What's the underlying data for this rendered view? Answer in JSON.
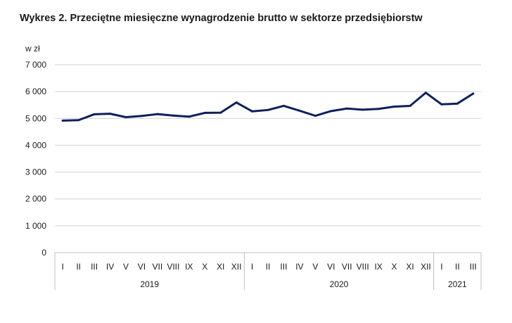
{
  "chart_data": {
    "type": "line",
    "title": "Wykres 2. Przeciętne miesięczne wynagrodzenie brutto w sektorze przedsiębiorstw",
    "unit_label": "w zł",
    "ylim": [
      0,
      7000
    ],
    "y_ticks": [
      "0",
      "1 000",
      "2 000",
      "3 000",
      "4 000",
      "5 000",
      "6 000",
      "7 000"
    ],
    "y_tick_values": [
      0,
      1000,
      2000,
      3000,
      4000,
      5000,
      6000,
      7000
    ],
    "grid": true,
    "line_color": "#0f1f5c",
    "categories": [
      "I",
      "II",
      "III",
      "IV",
      "V",
      "VI",
      "VII",
      "VIII",
      "IX",
      "X",
      "XI",
      "XII",
      "I",
      "II",
      "III",
      "IV",
      "V",
      "VI",
      "VII",
      "VIII",
      "IX",
      "X",
      "XI",
      "XII",
      "I",
      "II",
      "III"
    ],
    "years": [
      {
        "label": "2019",
        "months": 12
      },
      {
        "label": "2020",
        "months": 12
      },
      {
        "label": "2021",
        "months": 3
      }
    ],
    "values": [
      4918,
      4935,
      5156,
      5175,
      5047,
      5093,
      5160,
      5106,
      5067,
      5206,
      5215,
      5594,
      5264,
      5314,
      5468,
      5289,
      5099,
      5273,
      5367,
      5325,
      5355,
      5441,
      5467,
      5957,
      5524,
      5553,
      5926
    ]
  }
}
